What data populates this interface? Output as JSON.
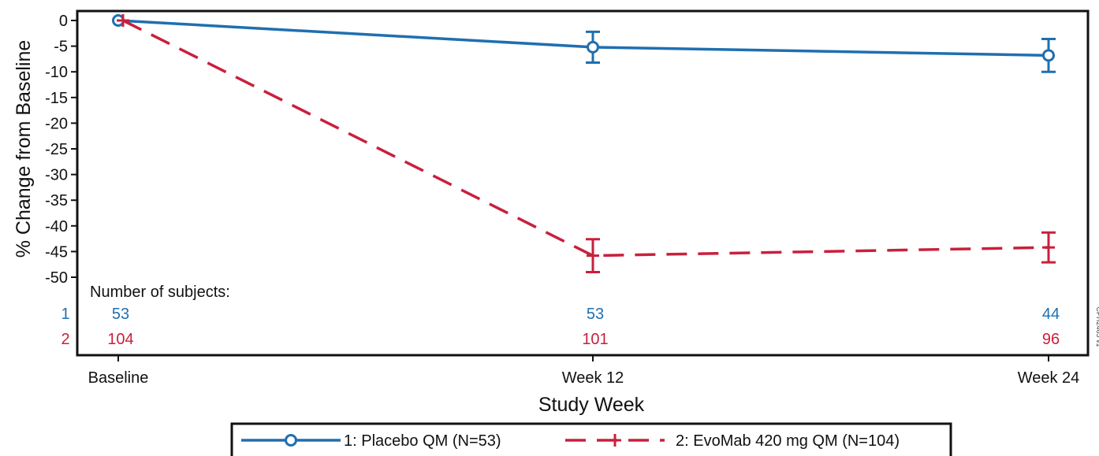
{
  "chart_data": {
    "type": "line",
    "xlabel": "Study Week",
    "ylabel": "% Change from Baseline",
    "ylim": [
      -50,
      0
    ],
    "yticks": [
      0,
      -5,
      -10,
      -15,
      -20,
      -25,
      -30,
      -35,
      -40,
      -45,
      -50
    ],
    "categories": [
      "Baseline",
      "Week 12",
      "Week 24"
    ],
    "grid": false,
    "legend_position": "bottom",
    "series": [
      {
        "name": "1: Placebo QM (N=53)",
        "row_label": "1",
        "color": "#1f6fb0",
        "line_style": "solid",
        "marker": "circle",
        "values": [
          0,
          -5.2,
          -6.8
        ],
        "error": [
          null,
          3.0,
          3.2
        ],
        "subjects": [
          "53",
          "53",
          "44"
        ]
      },
      {
        "name": "2: EvoMab 420 mg QM (N=104)",
        "row_label": "2",
        "color": "#c8203c",
        "line_style": "dashed",
        "marker": "plus",
        "values": [
          0,
          -45.8,
          -44.2
        ],
        "error": [
          null,
          3.2,
          2.9
        ],
        "subjects": [
          "104",
          "101",
          "96"
        ]
      }
    ],
    "subjects_label": "Number of subjects:",
    "figure_code": "CPH2465 v1"
  }
}
